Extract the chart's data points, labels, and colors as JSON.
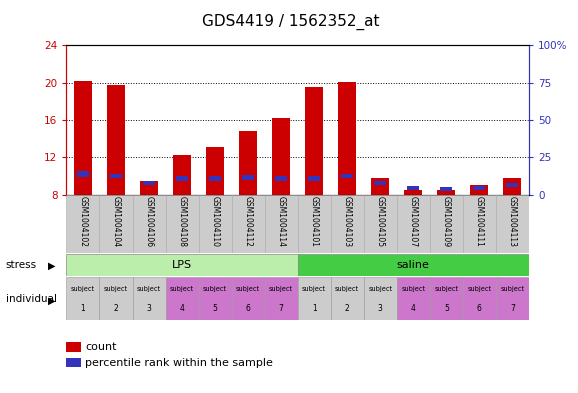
{
  "title": "GDS4419 / 1562352_at",
  "samples": [
    "GSM1004102",
    "GSM1004104",
    "GSM1004106",
    "GSM1004108",
    "GSM1004110",
    "GSM1004112",
    "GSM1004114",
    "GSM1004101",
    "GSM1004103",
    "GSM1004105",
    "GSM1004107",
    "GSM1004109",
    "GSM1004111",
    "GSM1004113"
  ],
  "count_values": [
    20.2,
    19.7,
    9.5,
    12.2,
    13.1,
    14.8,
    16.2,
    19.5,
    20.1,
    9.8,
    8.5,
    8.5,
    9.0,
    9.8
  ],
  "percentile_values": [
    10.2,
    10.0,
    9.2,
    9.7,
    9.7,
    9.8,
    9.7,
    9.7,
    10.0,
    9.2,
    8.7,
    8.6,
    8.7,
    9.0
  ],
  "blue_height": [
    0.55,
    0.5,
    0.42,
    0.48,
    0.48,
    0.5,
    0.48,
    0.48,
    0.5,
    0.42,
    0.42,
    0.48,
    0.48,
    0.42
  ],
  "ylim_left": [
    8,
    24
  ],
  "ylim_right": [
    0,
    100
  ],
  "yticks_left": [
    8,
    12,
    16,
    20,
    24
  ],
  "yticks_right": [
    0,
    25,
    50,
    75,
    100
  ],
  "bar_color": "#cc0000",
  "blue_color": "#3333bb",
  "bar_width": 0.55,
  "stress_groups": [
    {
      "label": "LPS",
      "start": 0,
      "end": 7,
      "color": "#bbeeaa"
    },
    {
      "label": "saline",
      "start": 7,
      "end": 14,
      "color": "#44cc44"
    }
  ],
  "individual_colors_lps": [
    "#cccccc",
    "#cccccc",
    "#cccccc",
    "#cc77cc",
    "#cc77cc",
    "#cc77cc",
    "#cc77cc"
  ],
  "individual_colors_sal": [
    "#cccccc",
    "#cccccc",
    "#cccccc",
    "#cc77cc",
    "#cc77cc",
    "#cc77cc",
    "#cc77cc"
  ],
  "left_axis_color": "#cc0000",
  "right_axis_color": "#3333bb",
  "title_fontsize": 11
}
